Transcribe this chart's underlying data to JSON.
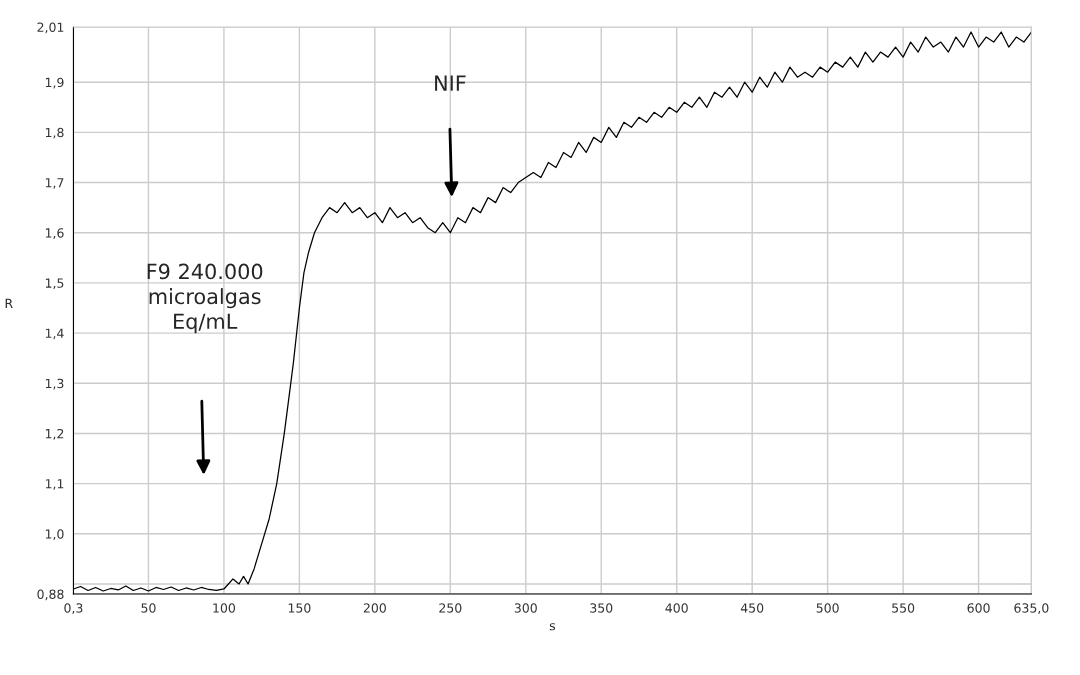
{
  "chart_data": {
    "type": "line",
    "xlabel": "s",
    "ylabel": "R",
    "xlim": [
      0.3,
      635.0
    ],
    "xticks": [
      {
        "value": 0.3,
        "label": "0,3"
      },
      50,
      100,
      150,
      200,
      250,
      300,
      350,
      400,
      450,
      500,
      550,
      600,
      {
        "value": 635.0,
        "label": "635,0"
      }
    ],
    "ylim": [
      0.88,
      2.01
    ],
    "yticks": [
      {
        "value": 0.88,
        "label": "0,88"
      },
      {
        "value": 0.9,
        "label": null
      },
      {
        "value": 1.0,
        "label": "1,0"
      },
      {
        "value": 1.1,
        "label": "1,1"
      },
      {
        "value": 1.2,
        "label": "1,2"
      },
      {
        "value": 1.3,
        "label": "1,3"
      },
      {
        "value": 1.4,
        "label": "1,4"
      },
      {
        "value": 1.5,
        "label": "1,5"
      },
      {
        "value": 1.6,
        "label": "1,6"
      },
      {
        "value": 1.7,
        "label": "1,7"
      },
      {
        "value": 1.8,
        "label": "1,8"
      },
      {
        "value": 1.9,
        "label": "1,9"
      },
      {
        "value": 2.01,
        "label": "2,01"
      }
    ],
    "grid": true,
    "series": [
      {
        "color": "#000000",
        "x": [
          0.3,
          5,
          10,
          15,
          20,
          25,
          30,
          35,
          40,
          45,
          50,
          55,
          60,
          65,
          70,
          75,
          80,
          85,
          90,
          95,
          100,
          103,
          106,
          110,
          113,
          116,
          120,
          125,
          130,
          135,
          140,
          143,
          146,
          150,
          153,
          156,
          160,
          165,
          170,
          175,
          180,
          185,
          190,
          195,
          200,
          205,
          210,
          215,
          220,
          225,
          230,
          235,
          240,
          245,
          250,
          255,
          260,
          265,
          270,
          275,
          280,
          285,
          290,
          295,
          300,
          305,
          310,
          315,
          320,
          325,
          330,
          335,
          340,
          345,
          350,
          355,
          360,
          365,
          370,
          375,
          380,
          385,
          390,
          395,
          400,
          405,
          410,
          415,
          420,
          425,
          430,
          435,
          440,
          445,
          450,
          455,
          460,
          465,
          470,
          475,
          480,
          485,
          490,
          495,
          500,
          505,
          510,
          515,
          520,
          525,
          530,
          535,
          540,
          545,
          550,
          555,
          560,
          565,
          570,
          575,
          580,
          585,
          590,
          595,
          600,
          605,
          610,
          615,
          620,
          625,
          630,
          635
        ],
        "values": [
          0.89,
          0.895,
          0.887,
          0.893,
          0.886,
          0.891,
          0.888,
          0.896,
          0.887,
          0.892,
          0.886,
          0.893,
          0.889,
          0.894,
          0.887,
          0.892,
          0.888,
          0.893,
          0.889,
          0.887,
          0.89,
          0.9,
          0.91,
          0.9,
          0.915,
          0.9,
          0.93,
          0.98,
          1.03,
          1.1,
          1.2,
          1.27,
          1.34,
          1.45,
          1.52,
          1.56,
          1.6,
          1.63,
          1.65,
          1.64,
          1.66,
          1.64,
          1.65,
          1.63,
          1.64,
          1.62,
          1.65,
          1.63,
          1.64,
          1.62,
          1.63,
          1.61,
          1.6,
          1.62,
          1.6,
          1.63,
          1.62,
          1.65,
          1.64,
          1.67,
          1.66,
          1.69,
          1.68,
          1.7,
          1.71,
          1.72,
          1.71,
          1.74,
          1.73,
          1.76,
          1.75,
          1.78,
          1.76,
          1.79,
          1.78,
          1.81,
          1.79,
          1.82,
          1.81,
          1.83,
          1.82,
          1.84,
          1.83,
          1.85,
          1.84,
          1.86,
          1.85,
          1.87,
          1.85,
          1.88,
          1.87,
          1.89,
          1.87,
          1.9,
          1.88,
          1.91,
          1.89,
          1.92,
          1.9,
          1.93,
          1.91,
          1.92,
          1.91,
          1.93,
          1.92,
          1.94,
          1.93,
          1.95,
          1.93,
          1.96,
          1.94,
          1.96,
          1.95,
          1.97,
          1.95,
          1.98,
          1.96,
          1.99,
          1.97,
          1.98,
          1.96,
          1.99,
          1.97,
          2.0,
          1.97,
          1.99,
          1.98,
          2.0,
          1.97,
          1.99,
          1.98,
          2.0
        ]
      }
    ],
    "annotations": [
      "NIF",
      "F9 240.000\nmicroalgas\nEq/mL"
    ]
  }
}
